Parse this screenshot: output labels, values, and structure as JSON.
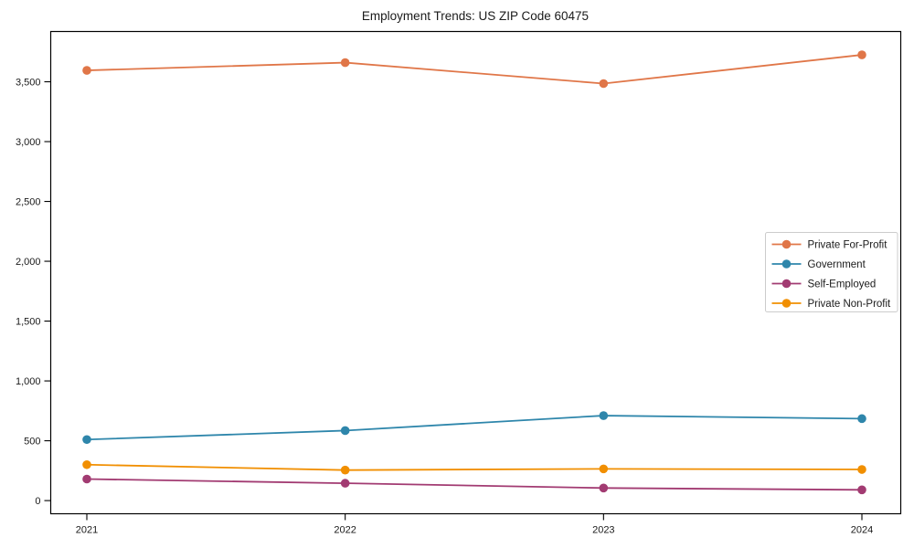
{
  "chart": {
    "title": "Employment Trends: US ZIP Code 60475"
  },
  "chart_data": {
    "type": "line",
    "title": "Employment Trends: US ZIP Code 60475",
    "xlabel": "",
    "ylabel": "",
    "categories": [
      "2021",
      "2022",
      "2023",
      "2024"
    ],
    "x": [
      2021,
      2022,
      2023,
      2024
    ],
    "series": [
      {
        "name": "Private For-Profit",
        "color": "#e07648",
        "values": [
          3595,
          3660,
          3485,
          3725
        ]
      },
      {
        "name": "Government",
        "color": "#2e86ab",
        "values": [
          510,
          585,
          710,
          685
        ]
      },
      {
        "name": "Self-Employed",
        "color": "#a23b72",
        "values": [
          180,
          145,
          105,
          90
        ]
      },
      {
        "name": "Private Non-Profit",
        "color": "#f18f01",
        "values": [
          300,
          255,
          265,
          260
        ]
      }
    ],
    "ylim": [
      -110,
      3920
    ],
    "yticks": [
      0,
      500,
      1000,
      1500,
      2000,
      2500,
      3000,
      3500
    ],
    "y_tick_labels": [
      "0",
      "500",
      "1,000",
      "1,500",
      "2,000",
      "2,500",
      "3,000",
      "3,500"
    ],
    "x_tick_labels": [
      "2021",
      "2022",
      "2023",
      "2024"
    ],
    "grid": false,
    "legend_position": "center-right",
    "marker": "circle",
    "axis_color": "#000000",
    "legend_border_color": "#cccccc",
    "background_color": "#ffffff"
  }
}
